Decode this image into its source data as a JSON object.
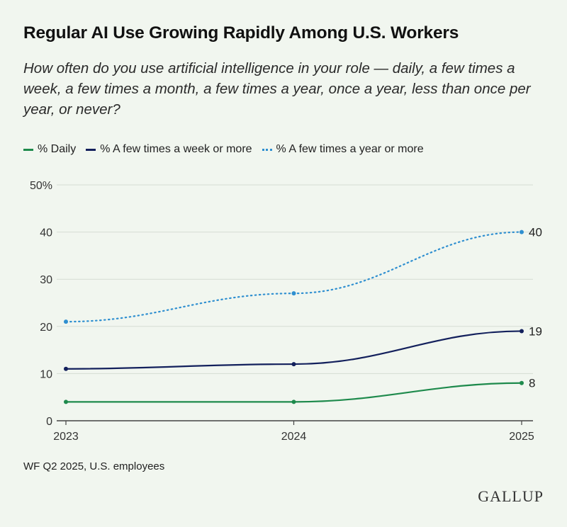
{
  "header": {
    "title": "Regular AI Use Growing Rapidly Among U.S. Workers",
    "subtitle": "How often do you use artificial intelligence in your role — daily, a few times a week, a few times a month, a few times a year, once a year, less than once per year, or never?"
  },
  "legend": [
    {
      "label": "% Daily",
      "color": "#1e8a4c",
      "style": "solid"
    },
    {
      "label": "% A few times a week or more",
      "color": "#13205c",
      "style": "solid"
    },
    {
      "label": "% A few times a year or more",
      "color": "#2f8fd0",
      "style": "dotted"
    }
  ],
  "chart_data": {
    "type": "line",
    "x": [
      "2023",
      "2024",
      "2025"
    ],
    "ylim": [
      0,
      50
    ],
    "yticks": [
      "50%",
      "40",
      "30",
      "20",
      "10",
      "0"
    ],
    "grid": true,
    "series": [
      {
        "name": "% Daily",
        "values": [
          4,
          4,
          8
        ],
        "color": "#1e8a4c",
        "dashed": false,
        "end_label": "8"
      },
      {
        "name": "% A few times a week or more",
        "values": [
          11,
          12,
          19
        ],
        "color": "#13205c",
        "dashed": false,
        "end_label": "19"
      },
      {
        "name": "% A few times a year or more",
        "values": [
          21,
          27,
          40
        ],
        "color": "#2f8fd0",
        "dashed": true,
        "end_label": "40"
      }
    ]
  },
  "footer": {
    "source": "WF Q2 2025, U.S. employees",
    "logo": "GALLUP"
  }
}
